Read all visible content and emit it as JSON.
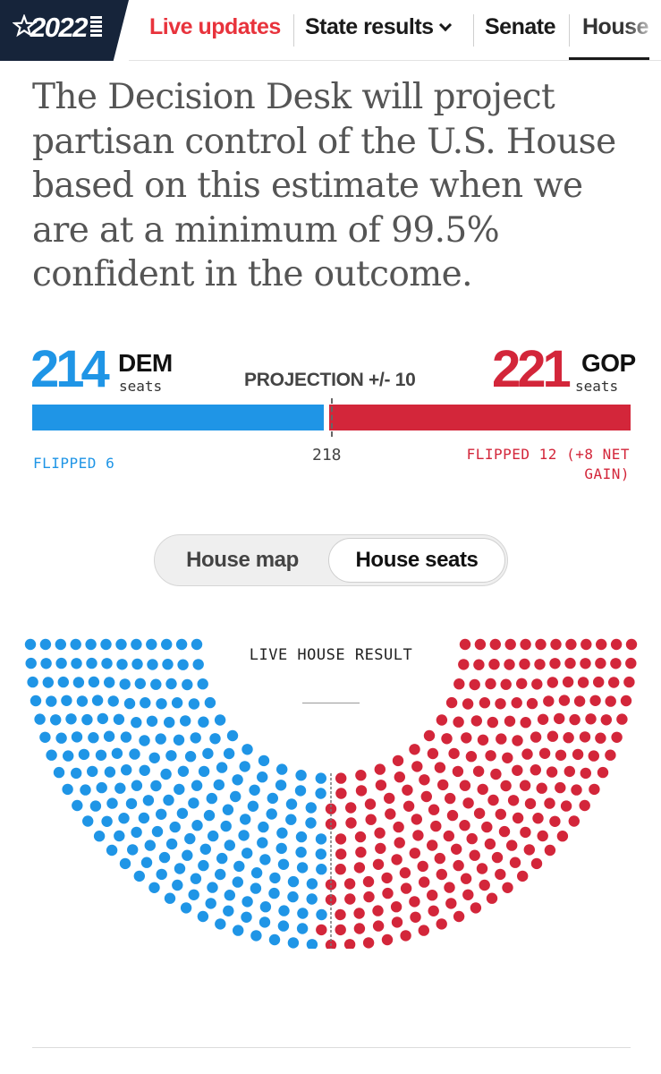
{
  "nav": {
    "logo_year": "2022",
    "items": [
      {
        "label": "Live updates"
      },
      {
        "label": "State results"
      },
      {
        "label": "Senate"
      },
      {
        "label": "House"
      }
    ]
  },
  "intro": "The Decision Desk will project partisan control of the U.S. House based on this estimate when we are at a minimum of 99.5% confident in the outcome.",
  "scoreboard": {
    "dem": {
      "seats": "214",
      "party": "DEM",
      "unit": "seats",
      "flipped": "FLIPPED 6"
    },
    "gop": {
      "seats": "221",
      "party": "GOP",
      "unit": "seats",
      "flipped": "FLIPPED 12 (+8 NET GAIN)"
    },
    "projection": "PROJECTION +/- 10",
    "majority": "218"
  },
  "toggle": {
    "map_label": "House map",
    "seats_label": "House seats",
    "selected": "House seats"
  },
  "chart_data": {
    "type": "hemicycle",
    "title": "LIVE HOUSE RESULT",
    "total_seats": 435,
    "majority": 218,
    "series": [
      {
        "name": "DEM",
        "value": 214,
        "color": "#1f95e6"
      },
      {
        "name": "GOP",
        "value": 221,
        "color": "#d3263a"
      }
    ]
  },
  "colors": {
    "dem": "#1f95e6",
    "gop": "#d3263a",
    "live": "#e8333c",
    "logo_bg": "#16243a"
  }
}
